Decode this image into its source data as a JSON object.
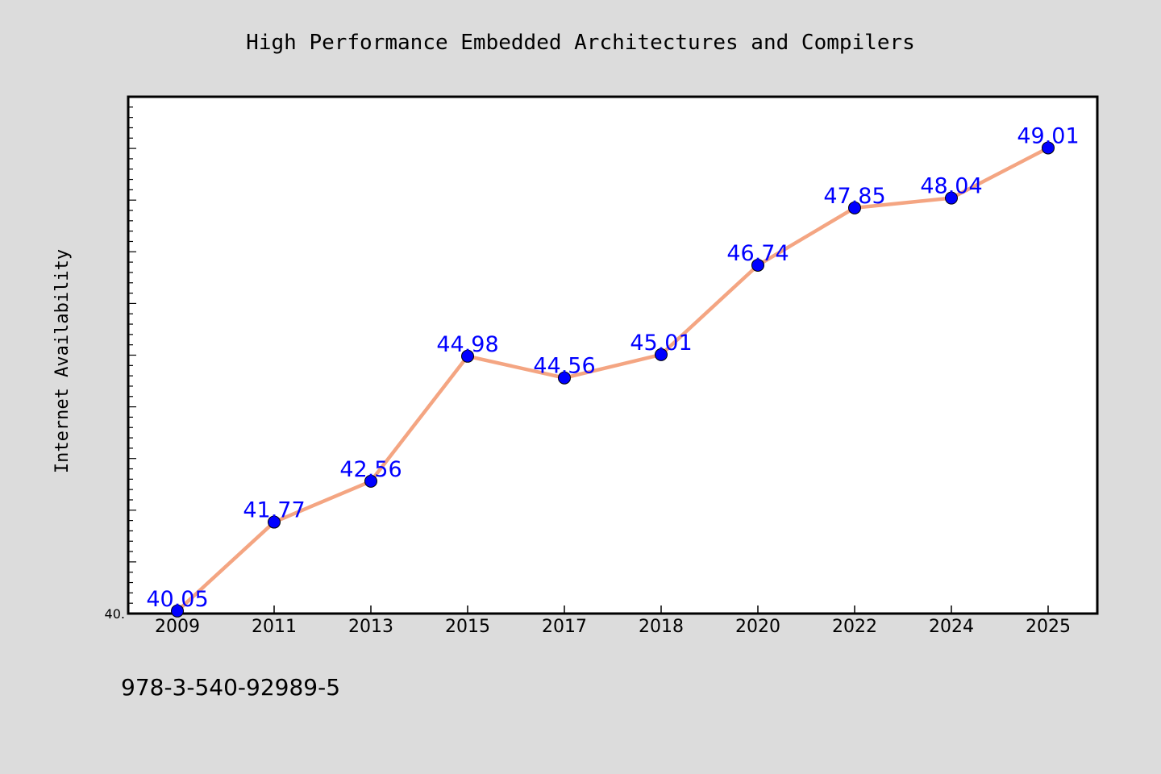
{
  "chart_data": {
    "type": "line",
    "title": "High Performance Embedded Architectures and Compilers",
    "xlabel": "",
    "ylabel": "Internet Availability",
    "categories": [
      "2009",
      "2011",
      "2013",
      "2015",
      "2017",
      "2018",
      "2020",
      "2022",
      "2024",
      "2025"
    ],
    "values": [
      40.05,
      41.77,
      42.56,
      44.98,
      44.56,
      45.01,
      46.74,
      47.85,
      48.04,
      49.01
    ],
    "value_labels": [
      "40.05",
      "41.77",
      "42.56",
      "44.98",
      "44.56",
      "45.01",
      "46.74",
      "47.85",
      "48.04",
      "49.01"
    ],
    "ylim": [
      40.0,
      50.0
    ],
    "ytick_labels": [
      "40."
    ],
    "grid": false,
    "legend": "none",
    "line_color": "#f4a582",
    "marker_color": "#0000ff",
    "label_color": "#0000ff",
    "plot_background": "#ffffff",
    "figure_background": "#dcdcdc"
  },
  "footer_text": "978-3-540-92989-5"
}
